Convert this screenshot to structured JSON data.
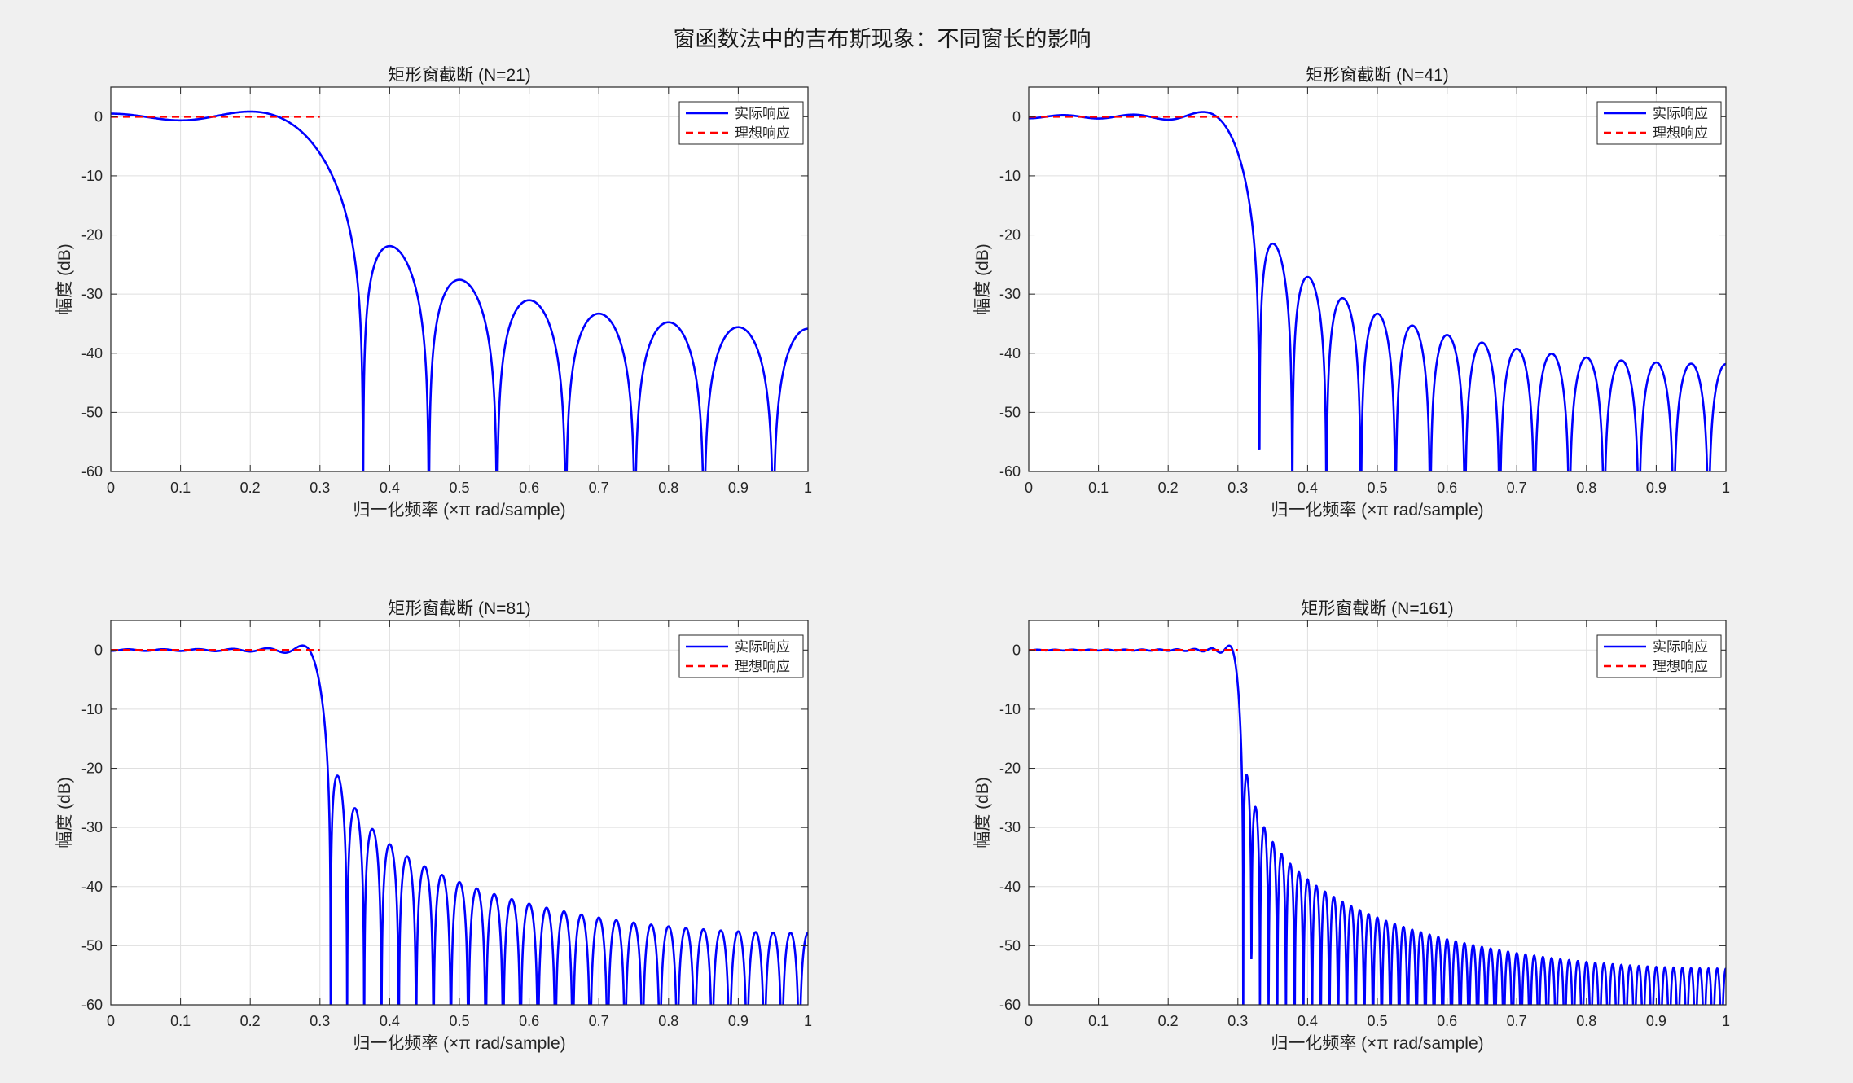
{
  "suptitle": "窗函数法中的吉布斯现象：不同窗长的影响",
  "chart_data": [
    {
      "type": "line",
      "title": "矩形窗截断 (N=21)",
      "N": 21,
      "cutoff": 0.3,
      "xlabel": "归一化频率 (×π rad/sample)",
      "ylabel": "幅度 (dB)",
      "xlim": [
        0,
        1
      ],
      "ylim": [
        -60,
        5
      ],
      "xticks": [
        0,
        0.1,
        0.2,
        0.3,
        0.4,
        0.5,
        0.6,
        0.7,
        0.8,
        0.9,
        1
      ],
      "xtick_labels": [
        "0",
        "0.1",
        "0.2",
        "0.3",
        "0.4",
        "0.5",
        "0.6",
        "0.7",
        "0.8",
        "0.9",
        "1"
      ],
      "yticks": [
        0,
        -10,
        -20,
        -30,
        -40,
        -50,
        -60
      ],
      "ytick_labels": [
        "0",
        "-10",
        "-20",
        "-30",
        "-40",
        "-50",
        "-60"
      ],
      "grid": true,
      "legend_position": "top-right",
      "series": [
        {
          "name": "实际响应",
          "color": "#0000ff",
          "style": "solid"
        },
        {
          "name": "理想响应",
          "color": "#ff0000",
          "style": "dashed",
          "x": [
            0,
            0.3
          ],
          "y": [
            0,
            0
          ]
        }
      ]
    },
    {
      "type": "line",
      "title": "矩形窗截断 (N=41)",
      "N": 41,
      "cutoff": 0.3,
      "xlabel": "归一化频率 (×π rad/sample)",
      "ylabel": "幅度 (dB)",
      "xlim": [
        0,
        1
      ],
      "ylim": [
        -60,
        5
      ],
      "xticks": [
        0,
        0.1,
        0.2,
        0.3,
        0.4,
        0.5,
        0.6,
        0.7,
        0.8,
        0.9,
        1
      ],
      "xtick_labels": [
        "0",
        "0.1",
        "0.2",
        "0.3",
        "0.4",
        "0.5",
        "0.6",
        "0.7",
        "0.8",
        "0.9",
        "1"
      ],
      "yticks": [
        0,
        -10,
        -20,
        -30,
        -40,
        -50,
        -60
      ],
      "ytick_labels": [
        "0",
        "-10",
        "-20",
        "-30",
        "-40",
        "-50",
        "-60"
      ],
      "grid": true,
      "legend_position": "top-right",
      "series": [
        {
          "name": "实际响应",
          "color": "#0000ff",
          "style": "solid"
        },
        {
          "name": "理想响应",
          "color": "#ff0000",
          "style": "dashed",
          "x": [
            0,
            0.3
          ],
          "y": [
            0,
            0
          ]
        }
      ]
    },
    {
      "type": "line",
      "title": "矩形窗截断 (N=81)",
      "N": 81,
      "cutoff": 0.3,
      "xlabel": "归一化频率 (×π rad/sample)",
      "ylabel": "幅度 (dB)",
      "xlim": [
        0,
        1
      ],
      "ylim": [
        -60,
        5
      ],
      "xticks": [
        0,
        0.1,
        0.2,
        0.3,
        0.4,
        0.5,
        0.6,
        0.7,
        0.8,
        0.9,
        1
      ],
      "xtick_labels": [
        "0",
        "0.1",
        "0.2",
        "0.3",
        "0.4",
        "0.5",
        "0.6",
        "0.7",
        "0.8",
        "0.9",
        "1"
      ],
      "yticks": [
        0,
        -10,
        -20,
        -30,
        -40,
        -50,
        -60
      ],
      "ytick_labels": [
        "0",
        "-10",
        "-20",
        "-30",
        "-40",
        "-50",
        "-60"
      ],
      "grid": true,
      "legend_position": "top-right",
      "series": [
        {
          "name": "实际响应",
          "color": "#0000ff",
          "style": "solid"
        },
        {
          "name": "理想响应",
          "color": "#ff0000",
          "style": "dashed",
          "x": [
            0,
            0.3
          ],
          "y": [
            0,
            0
          ]
        }
      ]
    },
    {
      "type": "line",
      "title": "矩形窗截断 (N=161)",
      "N": 161,
      "cutoff": 0.3,
      "xlabel": "归一化频率 (×π rad/sample)",
      "ylabel": "幅度 (dB)",
      "xlim": [
        0,
        1
      ],
      "ylim": [
        -60,
        5
      ],
      "xticks": [
        0,
        0.1,
        0.2,
        0.3,
        0.4,
        0.5,
        0.6,
        0.7,
        0.8,
        0.9,
        1
      ],
      "xtick_labels": [
        "0",
        "0.1",
        "0.2",
        "0.3",
        "0.4",
        "0.5",
        "0.6",
        "0.7",
        "0.8",
        "0.9",
        "1"
      ],
      "yticks": [
        0,
        -10,
        -20,
        -30,
        -40,
        -50,
        -60
      ],
      "ytick_labels": [
        "0",
        "-10",
        "-20",
        "-30",
        "-40",
        "-50",
        "-60"
      ],
      "grid": true,
      "legend_position": "top-right",
      "series": [
        {
          "name": "实际响应",
          "color": "#0000ff",
          "style": "solid"
        },
        {
          "name": "理想响应",
          "color": "#ff0000",
          "style": "dashed",
          "x": [
            0,
            0.3
          ],
          "y": [
            0,
            0
          ]
        }
      ]
    }
  ]
}
